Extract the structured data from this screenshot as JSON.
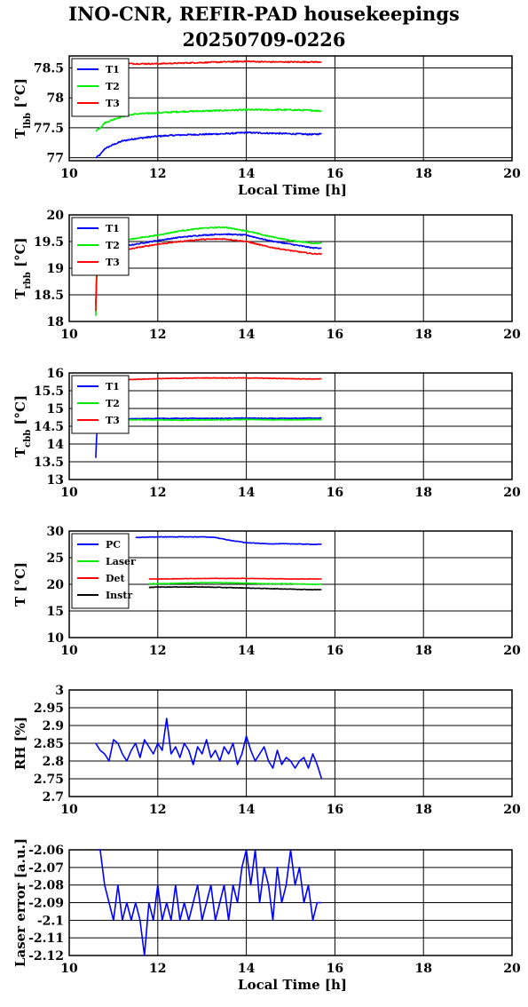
{
  "title_line1": "INO-CNR, REFIR-PAD housekeepings",
  "title_line2": "20250709-0226",
  "colors": {
    "blue": "#0000ff",
    "green": "#00ee00",
    "red": "#ff0000",
    "black": "#000000"
  },
  "chart_data": [
    {
      "type": "line",
      "ylabel": "T_lbb [°C]",
      "ylabel_main": "T",
      "ylabel_sub": "lbb",
      "ylabel_unit": "[°C]",
      "xlabel": "Local Time [h]",
      "xlim": [
        10,
        20
      ],
      "ylim": [
        76.95,
        78.7
      ],
      "xticks": [
        "10",
        "12",
        "14",
        "16",
        "18",
        "20"
      ],
      "yticks": [
        77,
        77.5,
        78,
        78.5
      ],
      "ytick_labels": [
        "77",
        "77.5",
        "78",
        "78.5"
      ],
      "grid": true,
      "legend_position": "top-left",
      "series": [
        {
          "name": "T1",
          "color": "#0000ff",
          "noise": 0.012,
          "x": [
            10.6,
            10.7,
            10.8,
            11.0,
            11.2,
            11.5,
            12.0,
            12.5,
            13.0,
            13.5,
            14.0,
            14.5,
            15.0,
            15.5,
            15.7
          ],
          "y": [
            77.0,
            77.05,
            77.15,
            77.22,
            77.28,
            77.32,
            77.36,
            77.38,
            77.39,
            77.4,
            77.42,
            77.41,
            77.4,
            77.39,
            77.4
          ]
        },
        {
          "name": "T2",
          "color": "#00ee00",
          "noise": 0.012,
          "x": [
            10.6,
            10.7,
            10.8,
            11.0,
            11.2,
            11.5,
            12.0,
            12.5,
            13.0,
            13.5,
            14.0,
            14.5,
            15.0,
            15.5,
            15.7
          ],
          "y": [
            77.45,
            77.5,
            77.58,
            77.64,
            77.69,
            77.73,
            77.75,
            77.77,
            77.78,
            77.79,
            77.8,
            77.8,
            77.8,
            77.79,
            77.78
          ]
        },
        {
          "name": "T3",
          "color": "#ff0000",
          "noise": 0.01,
          "x": [
            10.6,
            11.0,
            11.5,
            12.0,
            12.5,
            13.0,
            13.5,
            14.0,
            14.5,
            15.0,
            15.5,
            15.7
          ],
          "y": [
            78.6,
            78.58,
            78.57,
            78.57,
            78.58,
            78.59,
            78.6,
            78.61,
            78.6,
            78.6,
            78.6,
            78.6
          ]
        }
      ]
    },
    {
      "type": "line",
      "ylabel": "T_rbb [°C]",
      "ylabel_main": "T",
      "ylabel_sub": "rbb",
      "ylabel_unit": "[°C]",
      "xlabel": "",
      "xlim": [
        10,
        20
      ],
      "ylim": [
        18,
        20
      ],
      "xticks": [
        "10",
        "12",
        "14",
        "16",
        "18",
        "20"
      ],
      "yticks": [
        18,
        18.5,
        19,
        19.5,
        20
      ],
      "ytick_labels": [
        "18",
        "18.5",
        "19",
        "19.5",
        "20"
      ],
      "grid": true,
      "legend_position": "top-left",
      "series": [
        {
          "name": "T1",
          "color": "#0000ff",
          "noise": 0.01,
          "x": [
            10.6,
            10.62,
            10.65,
            10.7,
            11.0,
            11.5,
            12.0,
            12.5,
            13.0,
            13.5,
            14.0,
            14.5,
            15.0,
            15.5,
            15.7
          ],
          "y": [
            18.3,
            19.0,
            19.2,
            19.3,
            19.38,
            19.45,
            19.52,
            19.58,
            19.62,
            19.64,
            19.62,
            19.52,
            19.45,
            19.38,
            19.38
          ]
        },
        {
          "name": "T2",
          "color": "#00ee00",
          "noise": 0.01,
          "x": [
            10.6,
            10.62,
            10.65,
            10.7,
            11.0,
            11.5,
            12.0,
            12.5,
            13.0,
            13.5,
            14.0,
            14.5,
            15.0,
            15.5,
            15.7
          ],
          "y": [
            18.1,
            19.1,
            19.3,
            19.4,
            19.48,
            19.56,
            19.62,
            19.7,
            19.75,
            19.77,
            19.7,
            19.6,
            19.52,
            19.47,
            19.47
          ]
        },
        {
          "name": "T3",
          "color": "#ff0000",
          "noise": 0.01,
          "x": [
            10.6,
            10.62,
            10.65,
            10.7,
            11.0,
            11.5,
            12.0,
            12.5,
            13.0,
            13.5,
            14.0,
            14.5,
            15.0,
            15.5,
            15.7
          ],
          "y": [
            18.2,
            18.9,
            19.1,
            19.2,
            19.3,
            19.38,
            19.45,
            19.5,
            19.54,
            19.55,
            19.5,
            19.4,
            19.33,
            19.27,
            19.27
          ]
        }
      ]
    },
    {
      "type": "line",
      "ylabel": "T_cbb [°C]",
      "ylabel_main": "T",
      "ylabel_sub": "cbb",
      "ylabel_unit": "[°C]",
      "xlabel": "",
      "xlim": [
        10,
        20
      ],
      "ylim": [
        13,
        16
      ],
      "xticks": [
        "10",
        "12",
        "14",
        "16",
        "18",
        "20"
      ],
      "yticks": [
        13,
        13.5,
        14,
        14.5,
        15,
        15.5,
        16
      ],
      "ytick_labels": [
        "13",
        "13.5",
        "14",
        "14.5",
        "15",
        "15.5",
        "16"
      ],
      "grid": true,
      "legend_position": "top-left",
      "series": [
        {
          "name": "T1",
          "color": "#0000ff",
          "noise": 0.01,
          "x": [
            10.6,
            10.62,
            10.65,
            10.7,
            11.0,
            11.5,
            12.0,
            12.5,
            13.0,
            13.5,
            14.0,
            14.5,
            15.0,
            15.5,
            15.7
          ],
          "y": [
            13.6,
            14.3,
            14.6,
            14.68,
            14.7,
            14.71,
            14.72,
            14.72,
            14.72,
            14.72,
            14.73,
            14.72,
            14.72,
            14.73,
            14.73
          ]
        },
        {
          "name": "T2",
          "color": "#00ee00",
          "noise": 0.01,
          "x": [
            10.6,
            10.62,
            10.65,
            10.7,
            11.0,
            11.5,
            12.0,
            12.5,
            13.0,
            13.5,
            14.0,
            14.5,
            15.0,
            15.5,
            15.7
          ],
          "y": [
            14.4,
            14.6,
            14.65,
            14.67,
            14.68,
            14.68,
            14.68,
            14.67,
            14.68,
            14.68,
            14.69,
            14.68,
            14.68,
            14.69,
            14.69
          ]
        },
        {
          "name": "T3",
          "color": "#ff0000",
          "noise": 0.008,
          "x": [
            10.6,
            11.0,
            11.5,
            12.0,
            12.5,
            13.0,
            13.5,
            14.0,
            14.5,
            15.0,
            15.5,
            15.7
          ],
          "y": [
            15.8,
            15.8,
            15.82,
            15.84,
            15.85,
            15.86,
            15.86,
            15.86,
            15.85,
            15.84,
            15.83,
            15.83
          ]
        }
      ]
    },
    {
      "type": "line",
      "ylabel": "T [°C]",
      "ylabel_main": "T [°C]",
      "ylabel_sub": "",
      "ylabel_unit": "",
      "xlabel": "",
      "xlim": [
        10,
        20
      ],
      "ylim": [
        10,
        30
      ],
      "xticks": [
        "10",
        "12",
        "14",
        "16",
        "18",
        "20"
      ],
      "yticks": [
        10,
        15,
        20,
        25,
        30
      ],
      "ytick_labels": [
        "10",
        "15",
        "20",
        "25",
        "30"
      ],
      "grid": true,
      "legend_position": "top-left",
      "series": [
        {
          "name": "PC",
          "color": "#0000ff",
          "noise": 0.05,
          "x": [
            11.5,
            12.0,
            12.5,
            13.0,
            13.3,
            13.6,
            14.0,
            14.5,
            15.0,
            15.5,
            15.7
          ],
          "y": [
            28.8,
            28.9,
            28.9,
            28.9,
            28.8,
            28.3,
            27.8,
            27.6,
            27.6,
            27.5,
            27.5
          ]
        },
        {
          "name": "Laser",
          "color": "#00ee00",
          "noise": 0.05,
          "x": [
            11.8,
            12.0,
            12.5,
            13.0,
            13.5,
            14.0,
            14.5,
            15.0,
            15.5,
            15.7
          ],
          "y": [
            20.1,
            20.1,
            20.2,
            20.3,
            20.3,
            20.2,
            20.1,
            20.1,
            20.0,
            20.0
          ]
        },
        {
          "name": "Det",
          "color": "#ff0000",
          "noise": 0.04,
          "x": [
            11.8,
            12.0,
            12.5,
            13.0,
            13.5,
            14.0,
            14.5,
            15.0,
            15.5,
            15.7
          ],
          "y": [
            21.0,
            21.0,
            21.05,
            21.1,
            21.1,
            21.1,
            21.05,
            21.0,
            21.0,
            21.0
          ]
        },
        {
          "name": "Instr",
          "color": "#000000",
          "noise": 0.05,
          "x": [
            11.8,
            12.0,
            12.5,
            13.0,
            13.5,
            14.0,
            14.5,
            15.0,
            15.5,
            15.7
          ],
          "y": [
            19.4,
            19.5,
            19.5,
            19.5,
            19.4,
            19.3,
            19.2,
            19.1,
            19.0,
            19.0
          ]
        }
      ]
    },
    {
      "type": "line",
      "ylabel": "RH [%]",
      "ylabel_main": "RH [%]",
      "ylabel_sub": "",
      "ylabel_unit": "",
      "xlabel": "",
      "xlim": [
        10,
        20
      ],
      "ylim": [
        2.7,
        3.0
      ],
      "xticks": [
        "10",
        "12",
        "14",
        "16",
        "18",
        "20"
      ],
      "yticks": [
        2.7,
        2.75,
        2.8,
        2.85,
        2.9,
        2.95,
        3.0
      ],
      "ytick_labels": [
        "2.7",
        "2.75",
        "2.8",
        "2.85",
        "2.9",
        "2.95",
        "3"
      ],
      "grid": true,
      "legend_position": "none",
      "series": [
        {
          "name": "",
          "color": "#0000ff",
          "x": [
            10.6,
            10.7,
            10.8,
            10.9,
            11.0,
            11.1,
            11.2,
            11.3,
            11.4,
            11.5,
            11.6,
            11.7,
            11.8,
            11.9,
            12.0,
            12.1,
            12.2,
            12.3,
            12.4,
            12.5,
            12.6,
            12.7,
            12.8,
            12.9,
            13.0,
            13.1,
            13.2,
            13.3,
            13.4,
            13.5,
            13.6,
            13.7,
            13.8,
            13.9,
            14.0,
            14.1,
            14.2,
            14.3,
            14.4,
            14.5,
            14.6,
            14.7,
            14.8,
            14.9,
            15.0,
            15.1,
            15.2,
            15.3,
            15.4,
            15.5,
            15.6,
            15.7
          ],
          "y": [
            2.85,
            2.83,
            2.82,
            2.8,
            2.86,
            2.85,
            2.82,
            2.8,
            2.83,
            2.85,
            2.81,
            2.86,
            2.84,
            2.82,
            2.85,
            2.83,
            2.92,
            2.82,
            2.84,
            2.81,
            2.85,
            2.83,
            2.79,
            2.84,
            2.82,
            2.86,
            2.81,
            2.83,
            2.8,
            2.84,
            2.82,
            2.85,
            2.79,
            2.82,
            2.87,
            2.83,
            2.8,
            2.82,
            2.84,
            2.8,
            2.78,
            2.83,
            2.79,
            2.81,
            2.8,
            2.78,
            2.8,
            2.81,
            2.78,
            2.82,
            2.79,
            2.75
          ]
        }
      ]
    },
    {
      "type": "line",
      "ylabel": "Laser error [a.u.]",
      "ylabel_main": "Laser error [a.u.]",
      "ylabel_sub": "",
      "ylabel_unit": "",
      "xlabel": "Local Time [h]",
      "xlim": [
        10,
        20
      ],
      "ylim": [
        -2.12,
        -2.06
      ],
      "xticks": [
        "10",
        "12",
        "14",
        "16",
        "18",
        "20"
      ],
      "yticks": [
        -2.12,
        -2.11,
        -2.1,
        -2.09,
        -2.08,
        -2.07,
        -2.06
      ],
      "ytick_labels": [
        "-2.12",
        "-2.11",
        "-2.1",
        "-2.09",
        "-2.08",
        "-2.07",
        "-2.06"
      ],
      "grid": true,
      "legend_position": "none",
      "series": [
        {
          "name": "",
          "color": "#0000ff",
          "x": [
            10.65,
            10.7,
            10.75,
            10.8,
            10.9,
            11.0,
            11.1,
            11.2,
            11.3,
            11.4,
            11.5,
            11.6,
            11.7,
            11.8,
            11.9,
            12.0,
            12.1,
            12.2,
            12.3,
            12.4,
            12.5,
            12.6,
            12.7,
            12.8,
            12.9,
            13.0,
            13.1,
            13.2,
            13.3,
            13.4,
            13.5,
            13.6,
            13.7,
            13.8,
            13.9,
            14.0,
            14.1,
            14.2,
            14.3,
            14.4,
            14.5,
            14.6,
            14.7,
            14.8,
            14.9,
            15.0,
            15.1,
            15.2,
            15.3,
            15.4,
            15.5,
            15.6,
            15.7
          ],
          "y": [
            -2.06,
            -2.06,
            -2.07,
            -2.08,
            -2.09,
            -2.1,
            -2.08,
            -2.1,
            -2.09,
            -2.1,
            -2.09,
            -2.1,
            -2.12,
            -2.09,
            -2.1,
            -2.08,
            -2.1,
            -2.09,
            -2.1,
            -2.08,
            -2.1,
            -2.09,
            -2.1,
            -2.09,
            -2.08,
            -2.1,
            -2.09,
            -2.08,
            -2.1,
            -2.09,
            -2.08,
            -2.1,
            -2.08,
            -2.09,
            -2.07,
            -2.06,
            -2.08,
            -2.06,
            -2.09,
            -2.07,
            -2.08,
            -2.1,
            -2.07,
            -2.09,
            -2.08,
            -2.06,
            -2.08,
            -2.07,
            -2.09,
            -2.08,
            -2.1,
            -2.09,
            -2.09
          ]
        }
      ]
    }
  ]
}
